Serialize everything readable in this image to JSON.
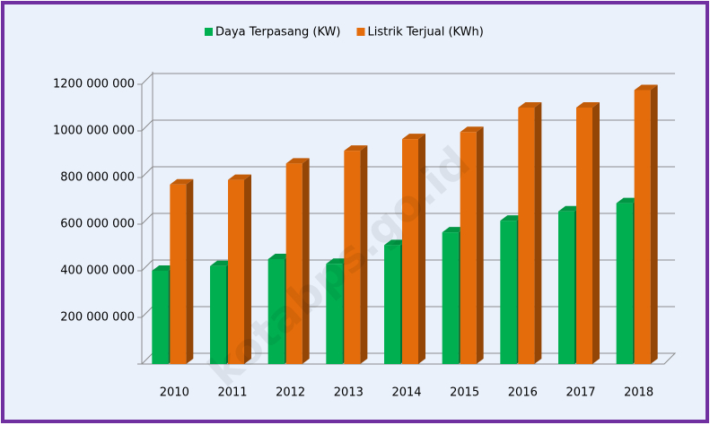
{
  "chart_data": {
    "type": "bar3d",
    "categories": [
      "2010",
      "2011",
      "2012",
      "2013",
      "2014",
      "2015",
      "2016",
      "2017",
      "2018"
    ],
    "series": [
      {
        "name": "Daya Terpasang (KW)",
        "color": "#00b050",
        "values": [
          400000000,
          420000000,
          450000000,
          430000000,
          510000000,
          565000000,
          615000000,
          655000000,
          690000000
        ]
      },
      {
        "name": "Listrik Terjual (KWh)",
        "color": "#e46c0a",
        "values": [
          770000000,
          790000000,
          860000000,
          915000000,
          965000000,
          995000000,
          1100000000,
          1100000000,
          1175000000
        ]
      }
    ],
    "ylim": [
      0,
      1200000000
    ],
    "yticks": [
      0,
      {
        "value": 200000000,
        "label": "200 000 000"
      },
      {
        "value": 400000000,
        "label": "400 000 000"
      },
      {
        "value": 600000000,
        "label": "600 000 000"
      },
      {
        "value": 800000000,
        "label": "800 000 000"
      },
      {
        "value": 1000000000,
        "label": "1000 000 000"
      },
      {
        "value": 1200000000,
        "label": "1200 000 000"
      }
    ],
    "grid": true,
    "legend": "top",
    "watermark": "kotabps.go.id"
  }
}
